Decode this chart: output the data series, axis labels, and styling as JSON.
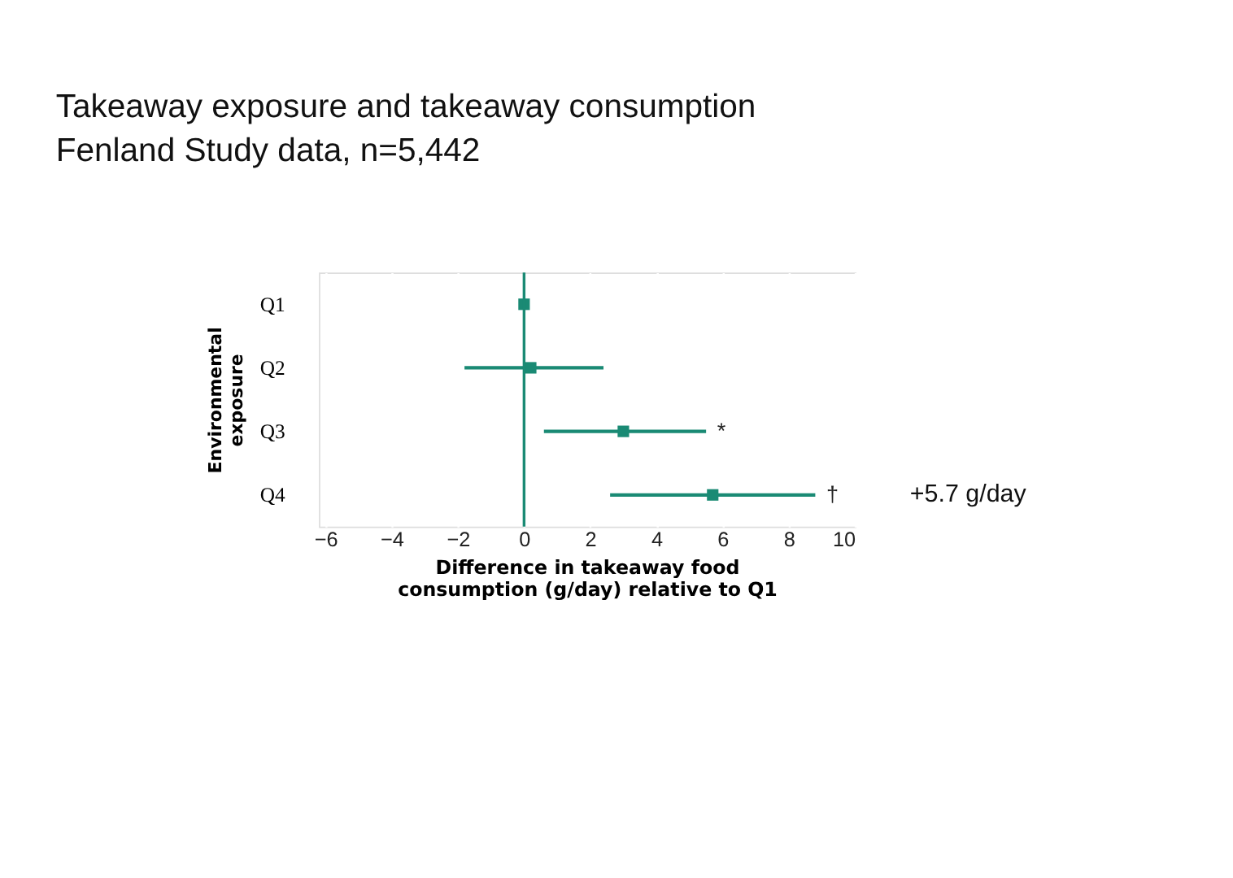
{
  "chart_data": {
    "type": "scatter",
    "orientation": "horizontal",
    "title": "Takeaway exposure and takeaway consumption",
    "subtitle": "Fenland Study data, n=5,442",
    "xlabel": "Difference in takeaway food\nconsumption (g/day) relative to Q1",
    "ylabel": "Environmental\nexposure",
    "categories": [
      "Q1",
      "Q2",
      "Q3",
      "Q4"
    ],
    "series": [
      {
        "color": "#1a8a74",
        "values": [
          0,
          0.2,
          3.0,
          5.7
        ],
        "errors": [
          null,
          [
            -1.8,
            2.4
          ],
          [
            0.6,
            5.5
          ],
          [
            2.6,
            8.8
          ]
        ]
      }
    ],
    "xlim": [
      -6.2,
      10
    ],
    "xticks": [
      -6,
      -4,
      -2,
      0,
      2,
      4,
      6,
      8,
      10
    ],
    "grid": "x",
    "marker": "square",
    "ref_lines": [
      {
        "axis": "x",
        "value": 0,
        "color": "#1a8a74"
      }
    ],
    "annotations": [
      "*",
      "†",
      "+5.7 g/day"
    ]
  }
}
